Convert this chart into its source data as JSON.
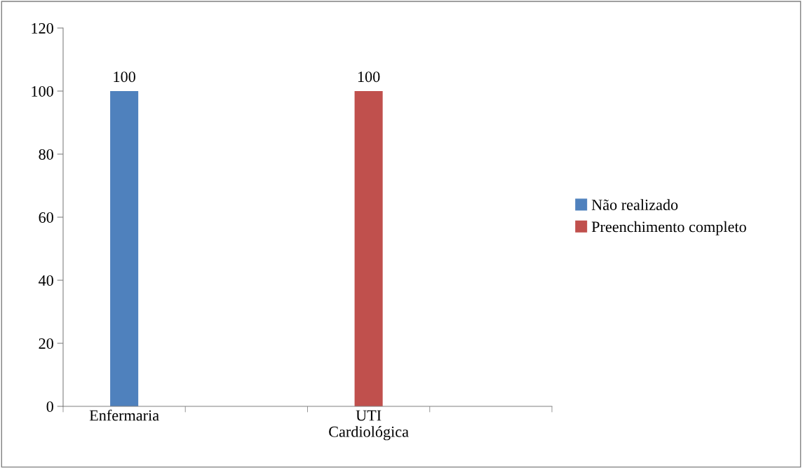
{
  "chart_data": {
    "type": "bar",
    "categories": [
      "Enfermaria",
      null,
      "UTI\nCardiológica",
      null
    ],
    "series": [
      {
        "name": "Não realizado",
        "color": "#4f81bd",
        "values": [
          100,
          null,
          null,
          null
        ]
      },
      {
        "name": "Preenchimento completo",
        "color": "#c0504d",
        "values": [
          null,
          null,
          100,
          null
        ]
      }
    ],
    "ylim": [
      0,
      120
    ],
    "yticks": [
      0,
      20,
      40,
      60,
      80,
      100,
      120
    ],
    "data_labels": true,
    "grid": false,
    "legend": "right"
  }
}
